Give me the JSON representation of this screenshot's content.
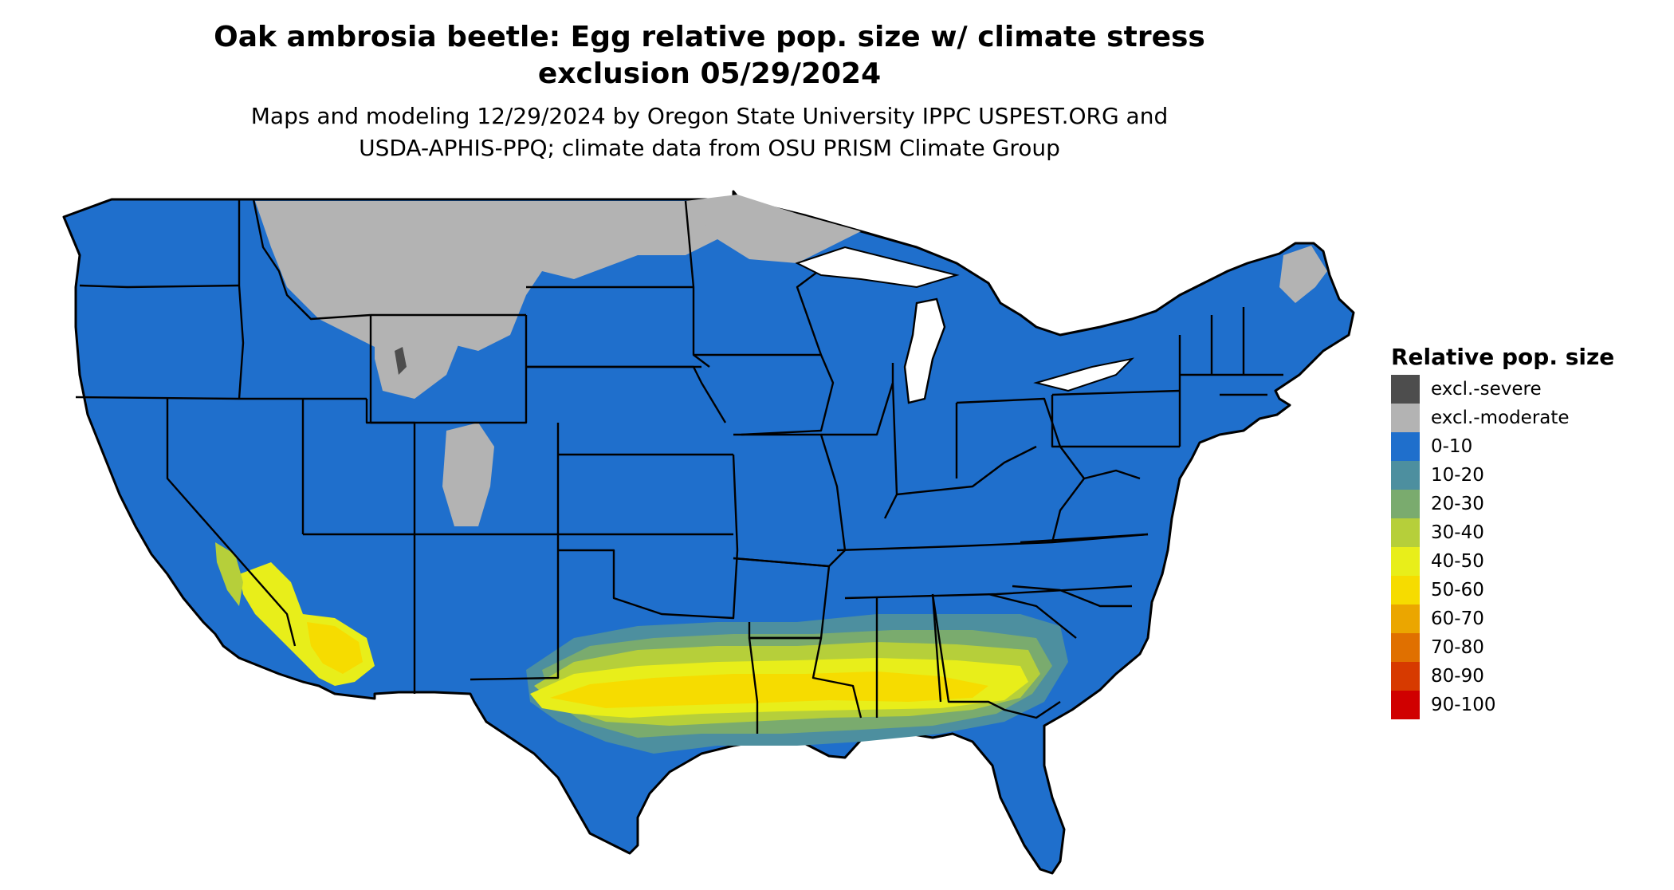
{
  "title": {
    "line1": "Oak ambrosia beetle: Egg relative pop. size w/ climate stress",
    "line2": "exclusion 05/29/2024"
  },
  "subtitle": {
    "line1": "Maps and modeling 12/29/2024 by Oregon State University IPPC USPEST.ORG and",
    "line2": "USDA-APHIS-PPQ; climate data from OSU PRISM Climate Group"
  },
  "legend": {
    "title": "Relative pop. size",
    "items": [
      {
        "label": "excl.-severe",
        "color": "#4d4d4d"
      },
      {
        "label": "excl.-moderate",
        "color": "#b3b3b3"
      },
      {
        "label": "0-10",
        "color": "#1f6fcc"
      },
      {
        "label": "10-20",
        "color": "#4d8f9f"
      },
      {
        "label": "20-30",
        "color": "#7aab6e"
      },
      {
        "label": "30-40",
        "color": "#b6cf3a"
      },
      {
        "label": "40-50",
        "color": "#e8ee1a"
      },
      {
        "label": "50-60",
        "color": "#f6dc00"
      },
      {
        "label": "60-70",
        "color": "#eba600"
      },
      {
        "label": "70-80",
        "color": "#e07000"
      },
      {
        "label": "80-90",
        "color": "#d73a00"
      },
      {
        "label": "90-100",
        "color": "#d00000"
      }
    ]
  },
  "colors": {
    "base": "#1f6fcc",
    "excluded_moderate": "#b3b3b3",
    "excluded_severe": "#4d4d4d",
    "border": "#000000"
  }
}
